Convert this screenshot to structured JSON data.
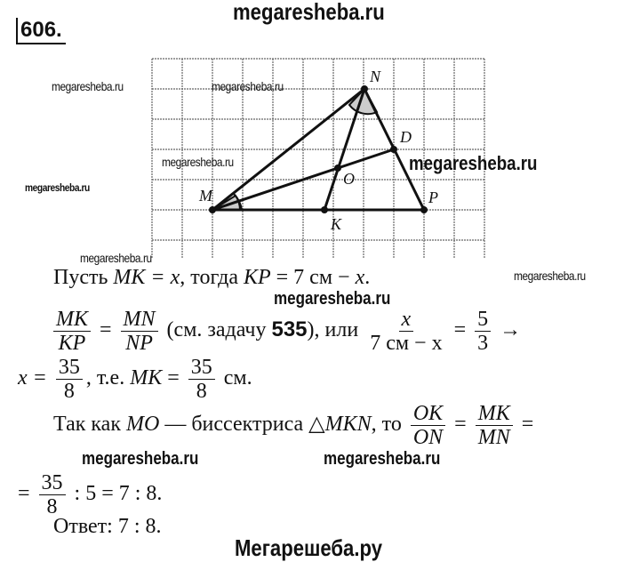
{
  "header_watermark": "megaresheba.ru",
  "problem_number": "606.",
  "watermarks": [
    "megaresheba.ru",
    "megaresheba.ru",
    "megaresheba.ru",
    "megaresheba.ru",
    "megaresheba.ru",
    "megaresheba.ru",
    "megaresheba.ru",
    "megaresheba.ru",
    "megaresheba.ru"
  ],
  "diagram": {
    "points": {
      "M": "M",
      "N": "N",
      "P": "P",
      "K": "K",
      "D": "D",
      "O": "O"
    }
  },
  "solution": {
    "line1": {
      "a": "Пусть ",
      "b": "MK = x",
      "c": ", тогда ",
      "d": "KP",
      "e": " = 7 см − ",
      "f": "x",
      "g": "."
    },
    "line2": {
      "f1_num": "MK",
      "f1_den": "KP",
      "eq": "=",
      "f2_num": "MN",
      "f2_den": "NP",
      "ref_a": "(см. задачу ",
      "ref_num": "535",
      "ref_b": "), или",
      "f3_num": "x",
      "f3_den": "7 см − x",
      "eq2": "=",
      "f4_num": "5",
      "f4_den": "3",
      "arrow": "→"
    },
    "line3": {
      "a": "x =",
      "f_num": "35",
      "f_den": "8",
      "b": ", т.е. ",
      "c": "MK",
      "d": " =",
      "f2_num": "35",
      "f2_den": "8",
      "e": " см."
    },
    "line4": {
      "a": "Так как ",
      "b": "MO",
      "c": " — биссектриса △",
      "d": "MKN",
      "e": ", то",
      "f1_num": "OK",
      "f1_den": "ON",
      "eq": "=",
      "f2_num": "MK",
      "f2_den": "MN",
      "eq2": "="
    },
    "line5": {
      "a": "=",
      "f_num": "35",
      "f_den": "8",
      "b": " : 5 = 7 : 8."
    },
    "answer": "Ответ: 7 : 8."
  },
  "footer": "Мегарешеба.ру"
}
